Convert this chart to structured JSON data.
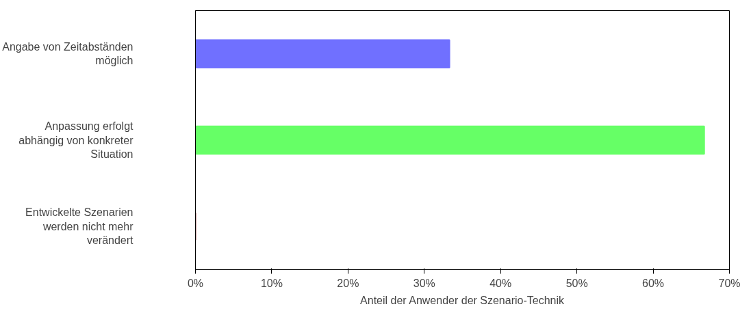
{
  "chart_data": {
    "type": "bar",
    "orientation": "horizontal",
    "xlabel": "Anteil der Anwender der Szenario-Technik",
    "categories": [
      "Angabe von Zeitabständen möglich",
      "Anpassung erfolgt abhängig von konkreter Situation",
      "Entwickelte Szenarien werden nicht mehr verändert"
    ],
    "values": [
      33.3,
      66.7,
      0
    ],
    "colors": [
      "#7070ff",
      "#66ff66",
      "#993333"
    ],
    "xlim": [
      0,
      70
    ],
    "xticks": [
      {
        "value": 0,
        "label": "0%"
      },
      {
        "value": 10,
        "label": "10%"
      },
      {
        "value": 20,
        "label": "20%"
      },
      {
        "value": 30,
        "label": "30%"
      },
      {
        "value": 40,
        "label": "40%"
      },
      {
        "value": 50,
        "label": "50%"
      },
      {
        "value": 60,
        "label": "60%"
      },
      {
        "value": 70,
        "label": "70%"
      }
    ],
    "grid": false
  }
}
